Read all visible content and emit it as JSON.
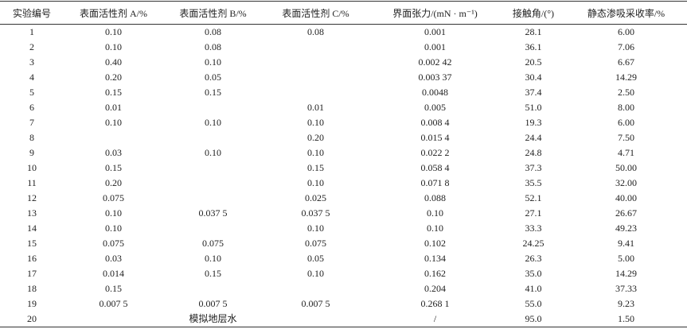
{
  "table": {
    "header": [
      "实验编号",
      "表面活性剂 A/%",
      "表面活性剂 B/%",
      "表面活性剂 C/%",
      "界面张力/(mN · m⁻¹)",
      "接触角/(°)",
      "静态渗吸采收率/%"
    ],
    "rows": [
      [
        "1",
        "0.10",
        "0.08",
        "0.08",
        "0.001",
        "28.1",
        "6.00"
      ],
      [
        "2",
        "0.10",
        "0.08",
        null,
        "0.001",
        "36.1",
        "7.06"
      ],
      [
        "3",
        "0.40",
        "0.10",
        null,
        "0.002 42",
        "20.5",
        "6.67"
      ],
      [
        "4",
        "0.20",
        "0.05",
        null,
        "0.003 37",
        "30.4",
        "14.29"
      ],
      [
        "5",
        "0.15",
        "0.15",
        null,
        "0.0048",
        "37.4",
        "2.50"
      ],
      [
        "6",
        "0.01",
        null,
        "0.01",
        "0.005",
        "51.0",
        "8.00"
      ],
      [
        "7",
        "0.10",
        "0.10",
        "0.10",
        "0.008 4",
        "19.3",
        "6.00"
      ],
      [
        "8",
        null,
        null,
        "0.20",
        "0.015 4",
        "24.4",
        "7.50"
      ],
      [
        "9",
        "0.03",
        "0.10",
        "0.10",
        "0.022 2",
        "24.8",
        "4.71"
      ],
      [
        "10",
        "0.15",
        null,
        "0.15",
        "0.058 4",
        "37.3",
        "50.00"
      ],
      [
        "11",
        "0.20",
        null,
        "0.10",
        "0.071 8",
        "35.5",
        "32.00"
      ],
      [
        "12",
        "0.075",
        null,
        "0.025",
        "0.088",
        "52.1",
        "40.00"
      ],
      [
        "13",
        "0.10",
        "0.037 5",
        "0.037 5",
        "0.10",
        "27.1",
        "26.67"
      ],
      [
        "14",
        "0.10",
        null,
        "0.10",
        "0.10",
        "33.3",
        "49.23"
      ],
      [
        "15",
        "0.075",
        "0.075",
        "0.075",
        "0.102",
        "24.25",
        "9.41"
      ],
      [
        "16",
        "0.03",
        "0.10",
        "0.05",
        "0.134",
        "26.3",
        "5.00"
      ],
      [
        "17",
        "0.014",
        "0.15",
        "0.10",
        "0.162",
        "35.0",
        "14.29"
      ],
      [
        "18",
        "0.15",
        null,
        null,
        "0.204",
        "41.0",
        "37.33"
      ],
      [
        "19",
        "0.007 5",
        "0.007 5",
        "0.007 5",
        "0.268 1",
        "55.0",
        "9.23"
      ],
      [
        "20",
        null,
        "模拟地层水",
        null,
        "/",
        "95.0",
        "1.50"
      ]
    ]
  }
}
